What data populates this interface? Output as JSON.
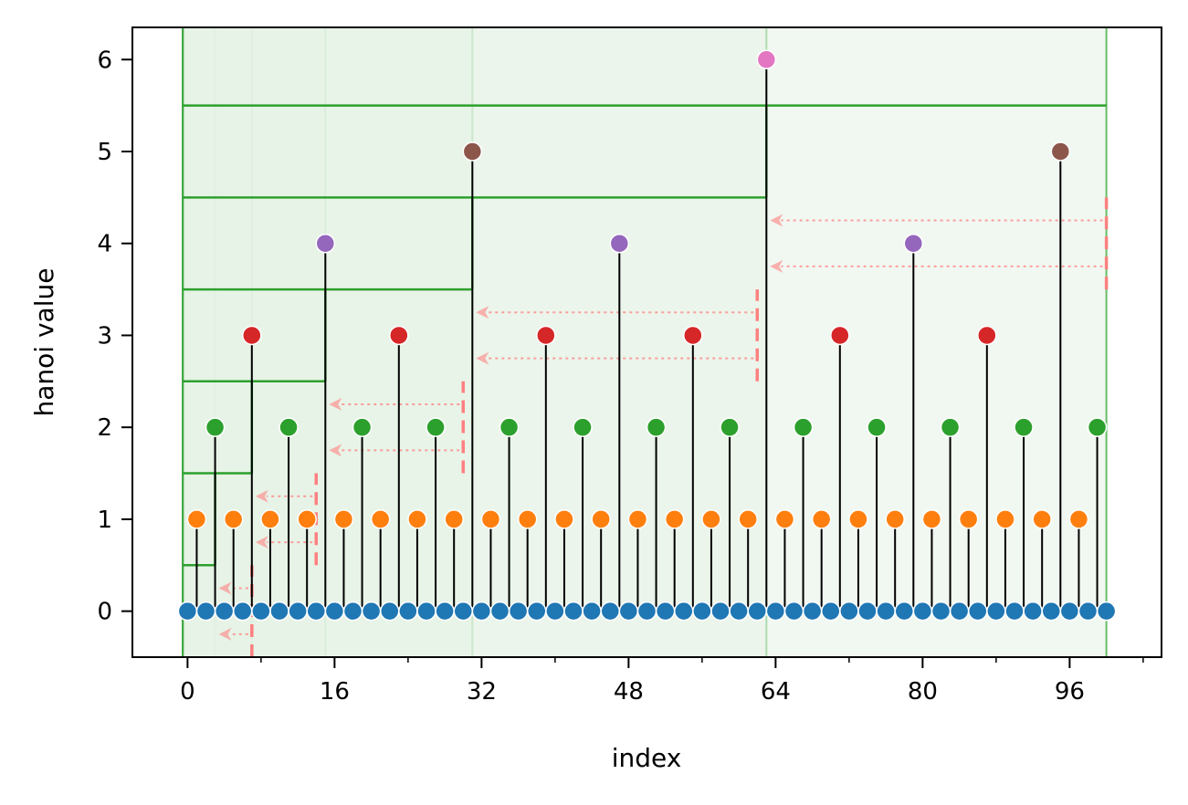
{
  "chart_data": {
    "type": "stem",
    "title": "",
    "xlabel": "index",
    "ylabel": "hanoi value",
    "xlim": [
      -6,
      106
    ],
    "ylim": [
      -0.5,
      6.35
    ],
    "x_ticks": [
      0,
      16,
      32,
      48,
      64,
      80,
      96
    ],
    "x_ticks_labels": [
      "0",
      "16",
      "32",
      "48",
      "64",
      "80",
      "96"
    ],
    "x_minor_ticks": [
      8,
      24,
      40,
      56,
      72,
      88,
      104
    ],
    "y_ticks": [
      0,
      1,
      2,
      3,
      4,
      5,
      6
    ],
    "y_ticks_labels": [
      "0",
      "1",
      "2",
      "3",
      "4",
      "5",
      "6"
    ],
    "grid": false,
    "x": [
      0,
      2,
      4,
      6,
      8,
      10,
      12,
      14,
      16,
      18,
      20,
      22,
      24,
      26,
      28,
      30,
      32,
      34,
      36,
      38,
      40,
      42,
      44,
      46,
      48,
      50,
      52,
      54,
      56,
      58,
      60,
      62,
      64,
      66,
      68,
      70,
      72,
      74,
      76,
      78,
      80,
      82,
      84,
      86,
      88,
      90,
      92,
      94,
      96,
      98,
      100
    ],
    "values": [
      0,
      0,
      0,
      0,
      0,
      0,
      0,
      0,
      0,
      0,
      0,
      0,
      0,
      0,
      0,
      0,
      0,
      0,
      0,
      0,
      0,
      0,
      0,
      0,
      0,
      0,
      0,
      0,
      0,
      0,
      0,
      0,
      0,
      0,
      0,
      0,
      0,
      0,
      0,
      0,
      0,
      0,
      0,
      0,
      0,
      0,
      0,
      0,
      0,
      0,
      0
    ],
    "stems": {
      "x": [
        1,
        3,
        5,
        7,
        9,
        11,
        13,
        15,
        17,
        19,
        21,
        23,
        25,
        27,
        29,
        31,
        33,
        35,
        37,
        39,
        41,
        43,
        45,
        47,
        49,
        51,
        53,
        55,
        57,
        59,
        61,
        63,
        65,
        67,
        69,
        71,
        73,
        75,
        77,
        79,
        81,
        83,
        85,
        87,
        89,
        91,
        93,
        95,
        97,
        99
      ],
      "values": [
        1,
        2,
        1,
        3,
        1,
        2,
        1,
        4,
        1,
        2,
        1,
        3,
        1,
        2,
        1,
        5,
        1,
        2,
        1,
        3,
        1,
        2,
        1,
        4,
        1,
        2,
        1,
        3,
        1,
        2,
        1,
        6,
        1,
        2,
        1,
        3,
        1,
        2,
        1,
        4,
        1,
        2,
        1,
        3,
        1,
        2,
        1,
        5,
        1,
        2
      ]
    },
    "level_colors": {
      "0": "#1f77b4",
      "1": "#ff7f0e",
      "2": "#2ca02c",
      "3": "#d62728",
      "4": "#9467bd",
      "5": "#8c564b",
      "6": "#e377c2"
    },
    "blocks": [
      {
        "x_end": 3,
        "y_top": 0.5
      },
      {
        "x_end": 7,
        "y_top": 1.5
      },
      {
        "x_end": 15,
        "y_top": 2.5
      },
      {
        "x_end": 31,
        "y_top": 3.5
      },
      {
        "x_end": 63,
        "y_top": 4.5
      },
      {
        "x_end": 100,
        "y_top": 5.5
      }
    ],
    "block_fill": "#e5f2e5",
    "block_edge": "#2ca02c",
    "stem_color": "#000000",
    "arrow_color": "#ff8080",
    "arrows": [
      {
        "x_from": 7,
        "x_to": 3,
        "y": [
          -0.25,
          0.25
        ]
      },
      {
        "x_from": 14,
        "x_to": 7,
        "y": [
          0.75,
          1.25
        ]
      },
      {
        "x_from": 30,
        "x_to": 15,
        "y": [
          1.75,
          2.25
        ]
      },
      {
        "x_from": 62,
        "x_to": 31,
        "y": [
          2.75,
          3.25
        ]
      },
      {
        "x_from": 100,
        "x_to": 63,
        "y": [
          3.75,
          4.25
        ]
      }
    ]
  }
}
